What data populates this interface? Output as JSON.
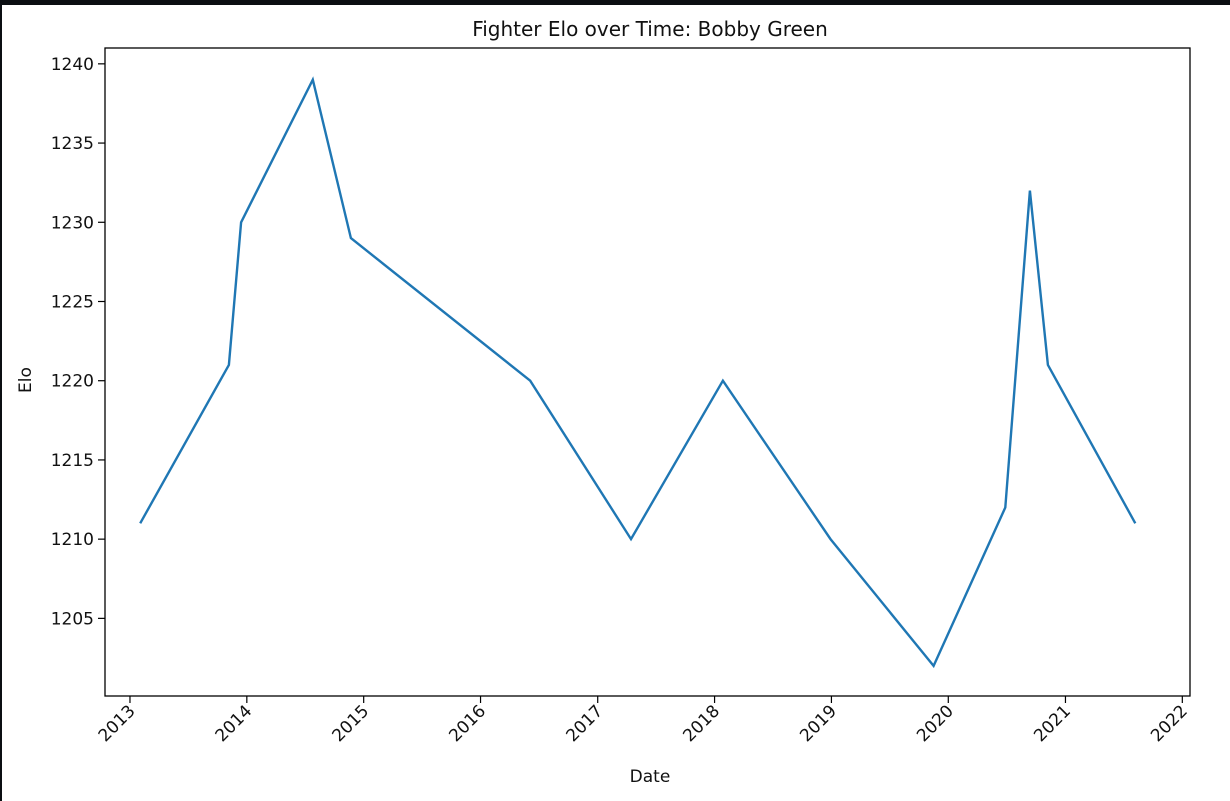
{
  "chart_data": {
    "type": "line",
    "title": "Fighter Elo over Time: Bobby Green",
    "xlabel": "Date",
    "ylabel": "Elo",
    "x_ticks": [
      "2013",
      "2014",
      "2015",
      "2016",
      "2017",
      "2018",
      "2019",
      "2020",
      "2021",
      "2022"
    ],
    "y_ticks": [
      1205,
      1210,
      1215,
      1220,
      1225,
      1230,
      1235,
      1240
    ],
    "xlim": [
      "2012-10-15",
      "2022-01-25"
    ],
    "ylim": [
      1200.1,
      1241.0
    ],
    "grid": false,
    "line_color": "#1f77b4",
    "series": [
      {
        "points": [
          {
            "x": "2013-02-02",
            "y": 1211
          },
          {
            "x": "2013-11-06",
            "y": 1221
          },
          {
            "x": "2013-12-14",
            "y": 1230
          },
          {
            "x": "2014-07-26",
            "y": 1239
          },
          {
            "x": "2014-11-22",
            "y": 1229
          },
          {
            "x": "2016-06-04",
            "y": 1220
          },
          {
            "x": "2017-04-15",
            "y": 1210
          },
          {
            "x": "2018-01-27",
            "y": 1220
          },
          {
            "x": "2018-12-29",
            "y": 1210
          },
          {
            "x": "2019-11-16",
            "y": 1202
          },
          {
            "x": "2020-06-27",
            "y": 1212
          },
          {
            "x": "2020-09-12",
            "y": 1232
          },
          {
            "x": "2020-11-07",
            "y": 1221
          },
          {
            "x": "2021-08-07",
            "y": 1211
          }
        ]
      }
    ]
  }
}
